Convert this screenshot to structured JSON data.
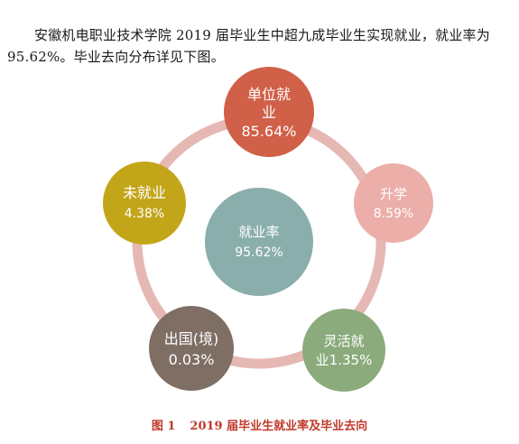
{
  "intro_text": "安徽机电职业技术学院 2019 届毕业生中超九成毕业生实现就业，就业率为 95.62%。毕业去向分布详见下图。",
  "diagram": {
    "center": {
      "line1": "就业率",
      "line2": "95.62%",
      "color": "#8aaeac"
    },
    "ring_color": "#e6b8b3",
    "nodes": [
      {
        "id": "employed",
        "line1": "单位就",
        "line2": "业",
        "line3": "85.64%",
        "color": "#d06048"
      },
      {
        "id": "further-study",
        "line1": "升学",
        "line2": "8.59%",
        "color": "#ecaea9"
      },
      {
        "id": "flexible",
        "line1": "灵活就",
        "line2": "业1.35%",
        "color": "#8bab7c"
      },
      {
        "id": "abroad",
        "line1": "出国(境)",
        "line2": "0.03%",
        "color": "#7f6e64"
      },
      {
        "id": "unemployed",
        "line1": "未就业",
        "line2": "4.38%",
        "color": "#c3a51a"
      }
    ]
  },
  "caption": {
    "number": "图 1",
    "text": "2019 届毕业生就业率及毕业去向"
  }
}
